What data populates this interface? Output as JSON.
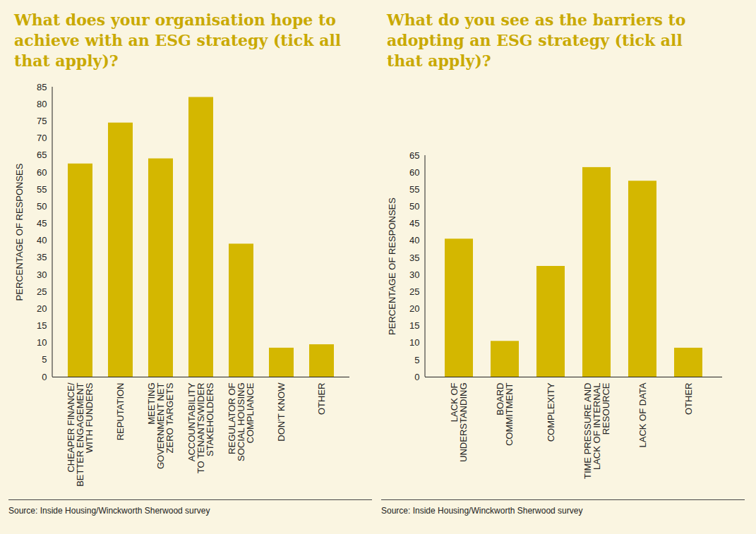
{
  "chart_data": [
    {
      "type": "bar",
      "title": "What does your organisation hope to achieve with an ESG strategy (tick all that apply)?",
      "y_label": "PERCENTAGE OF RESPONSES",
      "categories": [
        "CHEAPER FINANCE/\nBETTER ENGAGEMENT\nWITH FUNDERS",
        "REPUTATION",
        "MEETING\nGOVERNMENT NET\nZERO TARGETS",
        "ACCOUNTABILITY\nTO TENANTS/WIDER\nSTAKEHOLDERS",
        "REGULATOR OF\nSOCIAL HOUSING\nCOMPLIANCE",
        "DON'T KNOW",
        "OTHER"
      ],
      "values": [
        62.5,
        74.5,
        64,
        82,
        39,
        8.5,
        9.5
      ],
      "color": "#d4b700",
      "ylim": [
        0,
        85
      ],
      "yticks": [
        0,
        5,
        10,
        15,
        20,
        25,
        30,
        35,
        40,
        45,
        50,
        55,
        60,
        65,
        70,
        75,
        80,
        85
      ],
      "grid": false,
      "source": "Source: Inside Housing/Winckworth Sherwood survey"
    },
    {
      "type": "bar",
      "title": "What do you see as the barriers to adopting an ESG strategy (tick all that apply)?",
      "y_label": "PERCENTAGE OF RESPONSES",
      "categories": [
        "LACK OF\nUNDERSTANDING",
        "BOARD\nCOMMITMENT",
        "COMPLEXITY",
        "TIME PRESSURE AND\nLACK OF INTERNAL\nRESOURCE",
        "LACK OF DATA",
        "OTHER"
      ],
      "values": [
        40.5,
        10.5,
        32.5,
        61.5,
        57.5,
        8.5
      ],
      "color": "#d4b700",
      "ylim": [
        0,
        65
      ],
      "yticks": [
        0,
        5,
        10,
        15,
        20,
        25,
        30,
        35,
        40,
        45,
        50,
        55,
        60,
        65
      ],
      "grid": false,
      "source": "Source: Inside Housing/Winckworth Sherwood survey"
    }
  ]
}
